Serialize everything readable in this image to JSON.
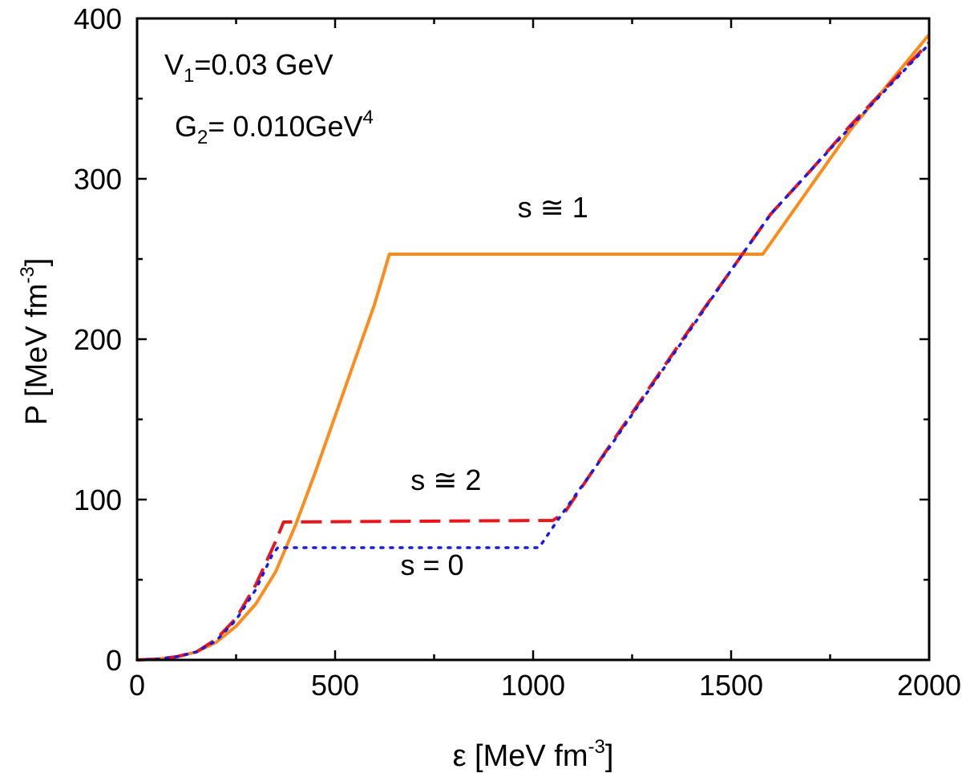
{
  "chart_data": {
    "type": "line",
    "xlabel": {
      "main": "ε [MeV fm",
      "sup": "-3",
      "end": "]"
    },
    "ylabel": {
      "main": "P [MeV fm",
      "sup": "-3",
      "end": "]"
    },
    "xlim": [
      0,
      2000
    ],
    "ylim": [
      0,
      400
    ],
    "x_ticks": [
      0,
      500,
      1000,
      1500,
      2000
    ],
    "y_ticks": [
      0,
      100,
      200,
      300,
      400
    ],
    "x_tick_labels": [
      "0",
      "500",
      "1000",
      "1500",
      "2000"
    ],
    "y_tick_labels": [
      "0",
      "100",
      "200",
      "300",
      "400"
    ],
    "x_minor_step": 250,
    "y_minor_step": 50,
    "grid": false,
    "legend": "none",
    "annotations": {
      "v1": {
        "main": "V",
        "sub": "1",
        "rest": "=0.03 GeV"
      },
      "g2": {
        "main": "G",
        "sub": "2",
        "rest": "= 0.010GeV",
        "sup": "4"
      }
    },
    "series": [
      {
        "label_text": "s ≅ 1",
        "label_pos": [
          1050,
          276
        ],
        "color": "#FF8C1A",
        "style": "solid",
        "points": [
          [
            0,
            0
          ],
          [
            50,
            0.5
          ],
          [
            100,
            2
          ],
          [
            150,
            5
          ],
          [
            200,
            11
          ],
          [
            250,
            21
          ],
          [
            300,
            35
          ],
          [
            350,
            55
          ],
          [
            400,
            84
          ],
          [
            450,
            117
          ],
          [
            500,
            152
          ],
          [
            550,
            187
          ],
          [
            600,
            222
          ],
          [
            637,
            253
          ],
          [
            1580,
            253
          ],
          [
            1700,
            295
          ],
          [
            1800,
            330
          ],
          [
            1900,
            360
          ],
          [
            2000,
            390
          ]
        ]
      },
      {
        "label_text": "s ≅ 2",
        "label_pos": [
          780,
          106
        ],
        "color": "#E8171C",
        "style": "dashed",
        "points": [
          [
            0,
            0
          ],
          [
            50,
            0.5
          ],
          [
            100,
            2
          ],
          [
            150,
            5
          ],
          [
            200,
            13
          ],
          [
            250,
            26
          ],
          [
            300,
            47
          ],
          [
            350,
            74
          ],
          [
            370,
            86
          ],
          [
            1050,
            87
          ],
          [
            1080,
            92
          ],
          [
            1200,
            136
          ],
          [
            1300,
            172
          ],
          [
            1400,
            208
          ],
          [
            1500,
            243
          ],
          [
            1600,
            278
          ],
          [
            1700,
            305
          ],
          [
            1800,
            333
          ],
          [
            1900,
            359
          ],
          [
            2000,
            385
          ]
        ]
      },
      {
        "label_text": "s = 0",
        "label_pos": [
          745,
          53
        ],
        "color": "#1A1AE8",
        "style": "dotted",
        "points": [
          [
            0,
            0
          ],
          [
            50,
            0.5
          ],
          [
            100,
            2
          ],
          [
            150,
            5
          ],
          [
            200,
            12
          ],
          [
            250,
            25
          ],
          [
            300,
            44
          ],
          [
            340,
            65
          ],
          [
            355,
            70
          ],
          [
            1015,
            70
          ],
          [
            1070,
            90
          ],
          [
            1200,
            135
          ],
          [
            1300,
            171
          ],
          [
            1400,
            207
          ],
          [
            1500,
            243
          ],
          [
            1600,
            278
          ],
          [
            1700,
            305
          ],
          [
            1800,
            332
          ],
          [
            1900,
            358
          ],
          [
            2000,
            384
          ]
        ]
      }
    ]
  }
}
